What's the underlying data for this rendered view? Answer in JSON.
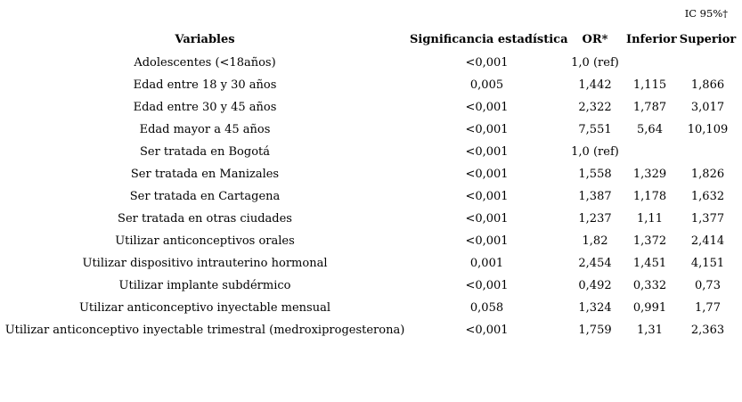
{
  "page": {
    "background_color": "#ffffff",
    "text_color": "#000000"
  },
  "table": {
    "ci_group_header": "IC 95%†",
    "columns": {
      "variables": "Variables",
      "significance": "Significancia estadística",
      "or": "OR*",
      "inferior": "Inferior",
      "superior": "Superior"
    },
    "rows": [
      {
        "variable": "Adolescentes (<18años)",
        "significance": "<0,001",
        "or": "1,0 (ref)",
        "inferior": "",
        "superior": "",
        "is_reference": true
      },
      {
        "variable": "Edad entre 18 y 30 años",
        "significance": "0,005",
        "or": "1,442",
        "inferior": "1,115",
        "superior": "1,866",
        "is_reference": false
      },
      {
        "variable": "Edad entre 30 y 45 años",
        "significance": "<0,001",
        "or": "2,322",
        "inferior": "1,787",
        "superior": "3,017",
        "is_reference": false
      },
      {
        "variable": "Edad mayor a 45 años",
        "significance": "<0,001",
        "or": "7,551",
        "inferior": "5,64",
        "superior": "10,109",
        "is_reference": false
      },
      {
        "variable": "Ser tratada en Bogotá",
        "significance": "<0,001",
        "or": "1,0 (ref)",
        "inferior": "",
        "superior": "",
        "is_reference": true
      },
      {
        "variable": "Ser tratada en Manizales",
        "significance": "<0,001",
        "or": "1,558",
        "inferior": "1,329",
        "superior": "1,826",
        "is_reference": false
      },
      {
        "variable": "Ser tratada en Cartagena",
        "significance": "<0,001",
        "or": "1,387",
        "inferior": "1,178",
        "superior": "1,632",
        "is_reference": false
      },
      {
        "variable": "Ser tratada en otras ciudades",
        "significance": "<0,001",
        "or": "1,237",
        "inferior": "1,11",
        "superior": "1,377",
        "is_reference": false
      },
      {
        "variable": "Utilizar anticonceptivos orales",
        "significance": "<0,001",
        "or": "1,82",
        "inferior": "1,372",
        "superior": "2,414",
        "is_reference": false
      },
      {
        "variable": "Utilizar dispositivo intrauterino hormonal",
        "significance": "0,001",
        "or": "2,454",
        "inferior": "1,451",
        "superior": "4,151",
        "is_reference": false
      },
      {
        "variable": "Utilizar implante subdérmico",
        "significance": "<0,001",
        "or": "0,492",
        "inferior": "0,332",
        "superior": "0,73",
        "is_reference": false
      },
      {
        "variable": "Utilizar anticonceptivo inyectable mensual",
        "significance": "0,058",
        "or": "1,324",
        "inferior": "0,991",
        "superior": "1,77",
        "is_reference": false
      },
      {
        "variable": "Utilizar anticonceptivo inyectable trimestral (medroxiprogesterona)",
        "significance": "<0,001",
        "or": "1,759",
        "inferior": "1,31",
        "superior": "2,363",
        "is_reference": false
      }
    ]
  }
}
